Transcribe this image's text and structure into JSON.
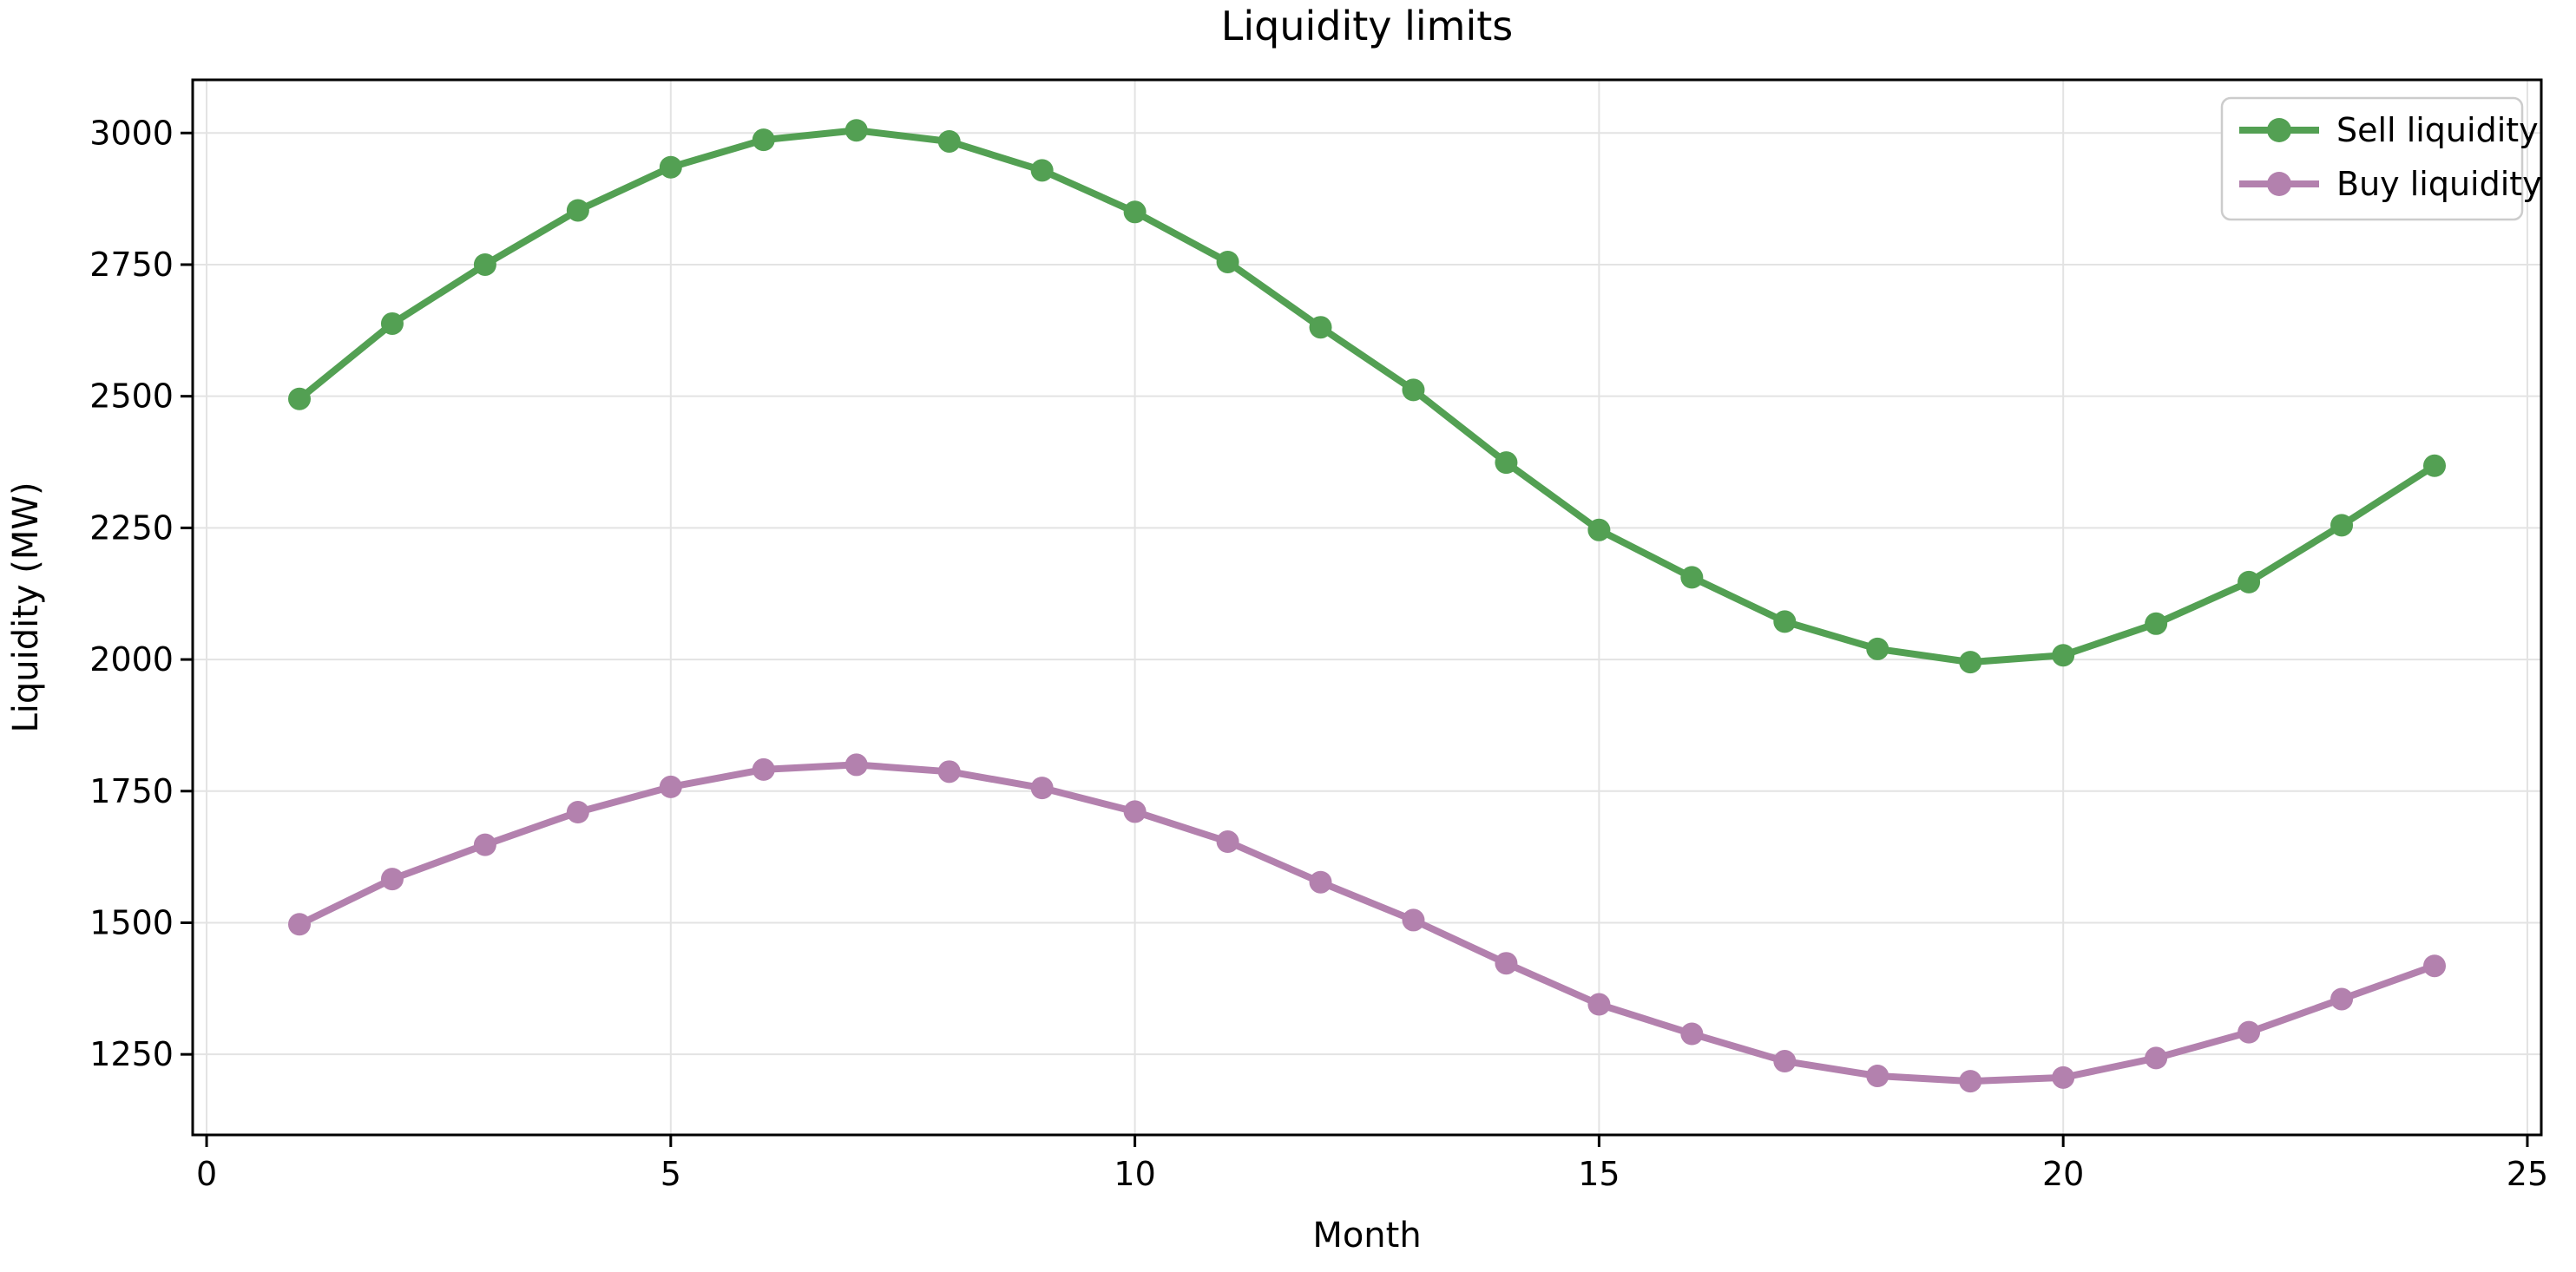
{
  "chart_data": {
    "type": "line",
    "title": "Liquidity limits",
    "xlabel": "Month",
    "ylabel": "Liquidity (MW)",
    "x": [
      1,
      2,
      3,
      4,
      5,
      6,
      7,
      8,
      9,
      10,
      11,
      12,
      13,
      14,
      15,
      16,
      17,
      18,
      19,
      20,
      21,
      22,
      23,
      24
    ],
    "series": [
      {
        "name": "Sell liquidity",
        "color": "#53a053",
        "values": [
          2495,
          2638,
          2750,
          2853,
          2935,
          2987,
          3005,
          2984,
          2929,
          2850,
          2755,
          2631,
          2512,
          2374,
          2246,
          2156,
          2072,
          2020,
          1995,
          2008,
          2068,
          2147,
          2255,
          2368
        ]
      },
      {
        "name": "Buy liquidity",
        "color": "#b381ae",
        "values": [
          1497,
          1583,
          1648,
          1710,
          1758,
          1791,
          1800,
          1787,
          1756,
          1711,
          1654,
          1577,
          1505,
          1423,
          1345,
          1289,
          1237,
          1209,
          1199,
          1206,
          1243,
          1292,
          1355,
          1418
        ]
      }
    ],
    "xticks": [
      0,
      5,
      10,
      15,
      20,
      25
    ],
    "yticks": [
      1250,
      1500,
      1750,
      2000,
      2250,
      2500,
      2750,
      3000
    ],
    "xlim": [
      -0.15,
      25.15
    ],
    "ylim": [
      1097,
      3101
    ],
    "grid": true,
    "grid_color": "#e3e3e3",
    "legend_position": "upper right"
  }
}
